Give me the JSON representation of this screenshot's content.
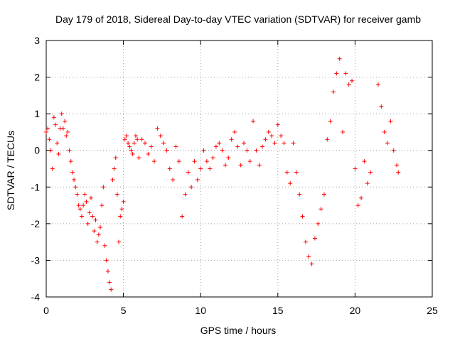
{
  "chart_data": {
    "type": "scatter",
    "title": "Day 179 of 2018, Sidereal Day-to-day VTEC variation (SDTVAR) for receiver gamb",
    "xlabel": "GPS time / hours",
    "ylabel": "SDTVAR / TECUs",
    "xlim": [
      0,
      25
    ],
    "ylim": [
      -4,
      3
    ],
    "xticks": [
      0,
      5,
      10,
      15,
      20,
      25
    ],
    "yticks": [
      -4,
      -3,
      -2,
      -1,
      0,
      1,
      2,
      3
    ],
    "xtick_labels": [
      "0",
      "5",
      "10",
      "15",
      "20",
      "25"
    ],
    "ytick_labels": [
      "-4",
      "-3",
      "-2",
      "-1",
      "0",
      "1",
      "2",
      "3"
    ],
    "grid": true,
    "marker": "+",
    "color": "#ff0000",
    "series": [
      {
        "name": "SDTVAR",
        "x": [
          0.0,
          0.1,
          0.2,
          0.3,
          0.4,
          0.5,
          0.6,
          0.7,
          0.8,
          0.9,
          1.0,
          1.1,
          1.2,
          1.3,
          1.4,
          1.5,
          1.6,
          1.7,
          1.8,
          1.9,
          2.0,
          2.1,
          2.2,
          2.3,
          2.4,
          2.5,
          2.6,
          2.7,
          2.8,
          2.9,
          3.0,
          3.1,
          3.2,
          3.3,
          3.4,
          3.5,
          3.6,
          3.7,
          3.8,
          3.9,
          4.0,
          4.1,
          4.2,
          4.3,
          4.4,
          4.5,
          4.6,
          4.7,
          4.8,
          4.9,
          5.0,
          5.1,
          5.2,
          5.3,
          5.4,
          5.5,
          5.6,
          5.7,
          5.8,
          5.9,
          6.0,
          6.2,
          6.4,
          6.6,
          6.8,
          7.0,
          7.2,
          7.4,
          7.6,
          7.8,
          8.0,
          8.2,
          8.4,
          8.6,
          8.8,
          9.0,
          9.2,
          9.4,
          9.6,
          9.8,
          10.0,
          10.2,
          10.4,
          10.6,
          10.8,
          11.0,
          11.2,
          11.4,
          11.6,
          11.8,
          12.0,
          12.2,
          12.4,
          12.6,
          12.8,
          13.0,
          13.2,
          13.4,
          13.6,
          13.8,
          14.0,
          14.2,
          14.4,
          14.6,
          14.8,
          15.0,
          15.2,
          15.4,
          15.6,
          15.8,
          16.0,
          16.2,
          16.4,
          16.6,
          16.8,
          17.0,
          17.2,
          17.4,
          17.6,
          17.8,
          18.0,
          18.2,
          18.4,
          18.6,
          18.8,
          19.0,
          19.2,
          19.4,
          19.6,
          19.8,
          20.0,
          20.2,
          20.4,
          20.6,
          20.8,
          21.0,
          21.5,
          21.7,
          21.9,
          22.1,
          22.3,
          22.5,
          22.7,
          22.8
        ],
        "y": [
          0.5,
          0.6,
          0.3,
          0.0,
          -0.5,
          0.9,
          0.7,
          0.2,
          -0.1,
          0.6,
          1.0,
          0.6,
          0.8,
          0.4,
          0.5,
          0.0,
          -0.3,
          -0.6,
          -0.8,
          -1.0,
          -1.2,
          -1.5,
          -1.6,
          -1.8,
          -1.5,
          -1.2,
          -1.4,
          -2.0,
          -1.7,
          -1.3,
          -1.8,
          -2.2,
          -1.9,
          -2.5,
          -2.3,
          -2.1,
          -1.5,
          -1.0,
          -2.6,
          -3.0,
          -3.3,
          -3.6,
          -3.8,
          -0.8,
          -0.5,
          -0.2,
          -1.2,
          -2.5,
          -1.8,
          -1.6,
          -1.4,
          0.3,
          0.4,
          0.2,
          0.1,
          0.0,
          -0.1,
          0.2,
          0.4,
          0.3,
          -0.2,
          0.3,
          0.2,
          -0.1,
          0.1,
          -0.3,
          0.6,
          0.4,
          0.2,
          0.0,
          -0.5,
          -0.8,
          0.1,
          -0.3,
          -1.8,
          -1.2,
          -0.6,
          -1.0,
          -0.3,
          -0.8,
          -0.5,
          0.0,
          -0.3,
          -0.5,
          -0.2,
          0.1,
          0.2,
          0.0,
          -0.4,
          -0.2,
          0.3,
          0.5,
          0.1,
          -0.4,
          0.2,
          0.0,
          -0.3,
          0.8,
          0.0,
          -0.4,
          0.1,
          0.3,
          0.5,
          0.4,
          0.2,
          0.7,
          0.4,
          0.2,
          -0.6,
          -0.9,
          0.2,
          -0.6,
          -1.2,
          -1.8,
          -2.5,
          -2.9,
          -3.1,
          -2.4,
          -2.0,
          -1.6,
          -1.2,
          0.3,
          0.8,
          1.6,
          2.1,
          2.5,
          0.5,
          2.1,
          1.8,
          1.9,
          -0.5,
          -1.5,
          -1.3,
          -0.3,
          -0.9,
          -0.6,
          1.8,
          1.2,
          0.5,
          0.2,
          0.8,
          0.0,
          -0.4,
          -0.6
        ]
      }
    ]
  }
}
